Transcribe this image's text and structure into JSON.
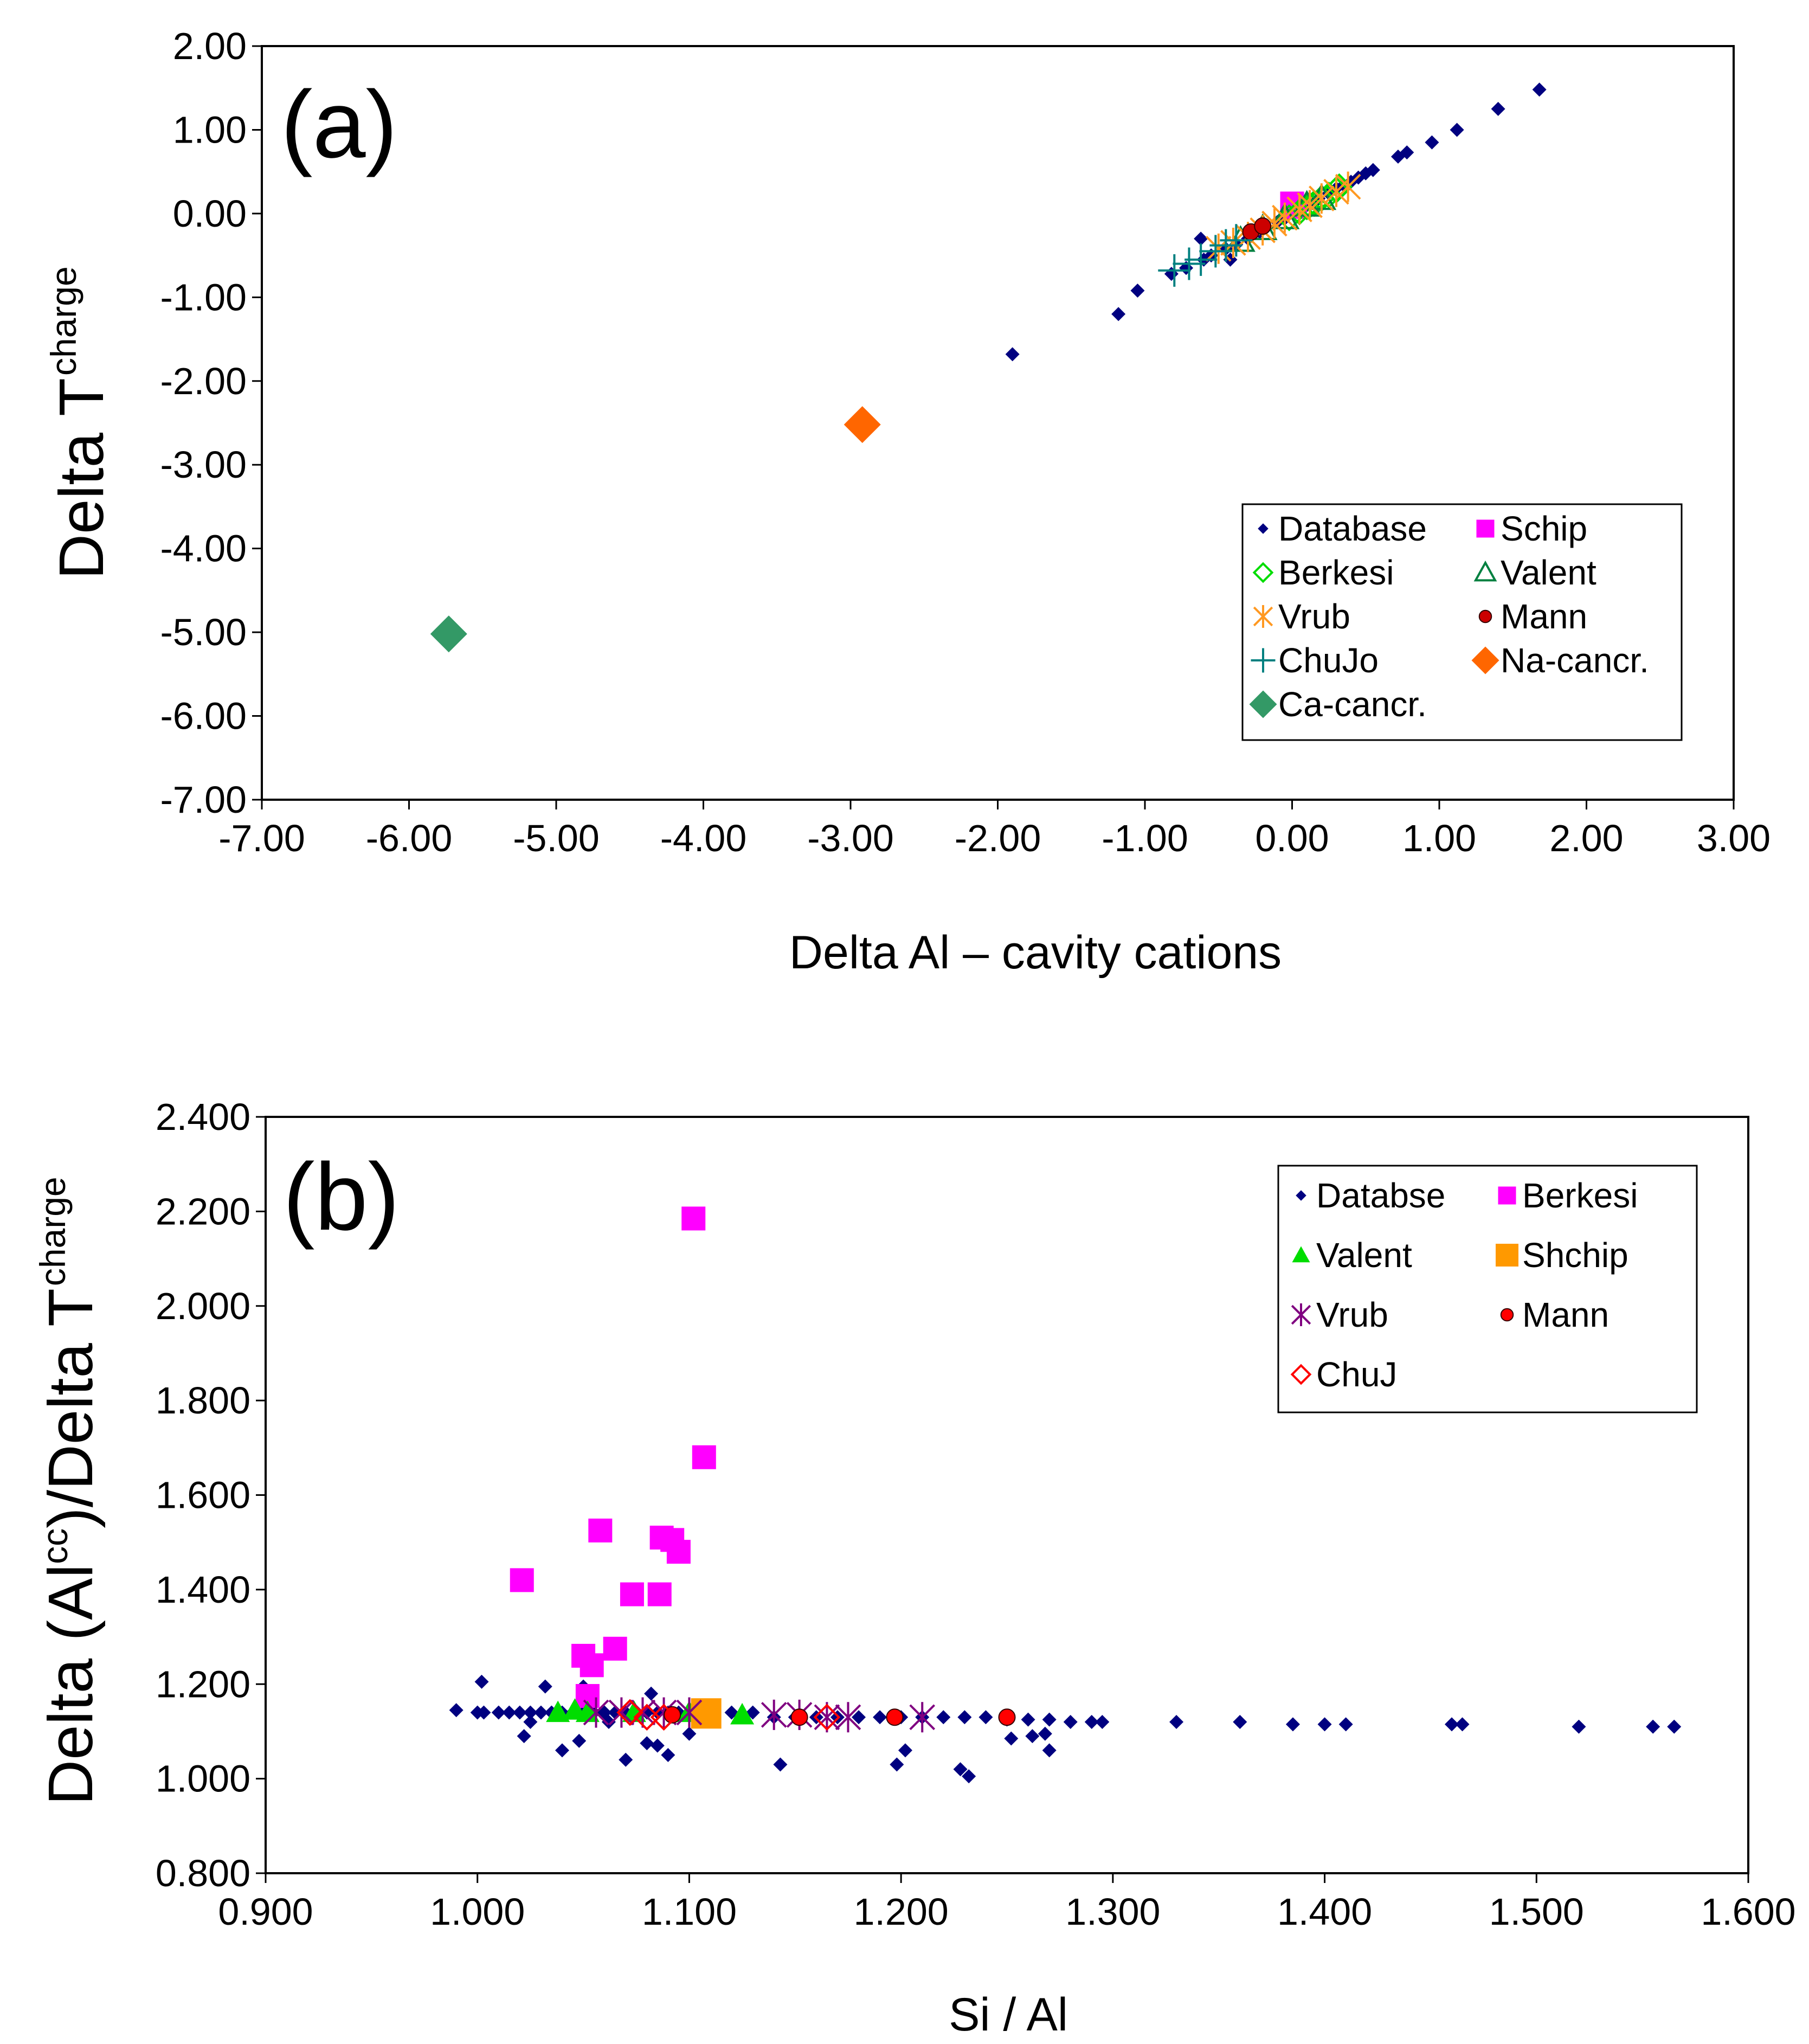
{
  "figure": {
    "background": "#ffffff"
  },
  "chart_data": [
    {
      "type": "scatter",
      "panel_label": "(a)",
      "title": "",
      "xlabel": "Delta Al – cavity cations",
      "ylabel_main": "Delta T",
      "ylabel_sup": "charge",
      "xlim": [
        -7.0,
        3.0
      ],
      "ylim": [
        -7.0,
        2.0
      ],
      "x_ticks": [
        -7,
        -6,
        -5,
        -4,
        -3,
        -2,
        -1,
        0,
        1,
        2,
        3
      ],
      "y_ticks": [
        2,
        1,
        0,
        -1,
        -2,
        -3,
        -4,
        -5,
        -6,
        -7
      ],
      "x_tick_labels": [
        "-7.00",
        "-6.00",
        "-5.00",
        "-4.00",
        "-3.00",
        "-2.00",
        "-1.00",
        "0.00",
        "1.00",
        "2.00",
        "3.00"
      ],
      "y_tick_labels": [
        "2.00",
        "1.00",
        "0.00",
        "-1.00",
        "-2.00",
        "-3.00",
        "-4.00",
        "-5.00",
        "-6.00",
        "-7.00"
      ],
      "grid": false,
      "legend_position": "lower-right",
      "legend_columns": 2,
      "series": [
        {
          "name": "Database",
          "marker": "diamond-small",
          "color": "#000080",
          "x": [
            -1.9,
            -1.18,
            -1.05,
            -0.82,
            -0.72,
            -0.6,
            -0.55,
            -0.45,
            -0.38,
            -0.3,
            -0.22,
            -0.1,
            -0.05,
            0.02,
            0.1,
            0.18,
            0.25,
            0.3,
            0.35,
            0.4,
            0.45,
            0.5,
            0.55,
            0.72,
            0.78,
            0.95,
            1.12,
            1.4,
            1.68,
            -0.62,
            -0.42
          ],
          "y": [
            -1.68,
            -1.2,
            -0.92,
            -0.72,
            -0.65,
            -0.55,
            -0.5,
            -0.42,
            -0.37,
            -0.3,
            -0.22,
            -0.1,
            -0.06,
            0.02,
            0.1,
            0.18,
            0.24,
            0.3,
            0.34,
            0.38,
            0.43,
            0.48,
            0.52,
            0.68,
            0.73,
            0.85,
            1.0,
            1.25,
            1.48,
            -0.3,
            -0.55
          ]
        },
        {
          "name": "Schip",
          "marker": "square",
          "color": "#ff00ff",
          "x": [
            0.0,
            0.02
          ],
          "y": [
            0.12,
            0.08
          ]
        },
        {
          "name": "Berkesi",
          "marker": "diamond-open",
          "color": "#00dd00",
          "x": [
            -0.02,
            0.05,
            0.1,
            0.15,
            0.2,
            0.25,
            0.3,
            0.32,
            0.12
          ],
          "y": [
            -0.05,
            0.02,
            0.08,
            0.12,
            0.18,
            0.22,
            0.28,
            0.32,
            0.1
          ]
        },
        {
          "name": "Valent",
          "marker": "triangle-open",
          "color": "#008040",
          "x": [
            -0.35,
            -0.2,
            -0.05,
            0.1,
            0.2
          ],
          "y": [
            -0.32,
            -0.18,
            -0.05,
            0.1,
            0.18
          ]
        },
        {
          "name": "Vrub",
          "marker": "asterisk",
          "color": "#ff9922",
          "x": [
            -0.5,
            -0.4,
            -0.3,
            -0.2,
            -0.12,
            -0.05,
            0.05,
            0.12,
            0.2,
            0.3,
            0.38
          ],
          "y": [
            -0.42,
            -0.35,
            -0.28,
            -0.2,
            -0.12,
            -0.05,
            0.05,
            0.1,
            0.18,
            0.26,
            0.32
          ]
        },
        {
          "name": "Mann",
          "marker": "circle",
          "color": "#cc0000",
          "x": [
            -0.28,
            -0.2
          ],
          "y": [
            -0.22,
            -0.15
          ]
        },
        {
          "name": "ChuJo",
          "marker": "plus",
          "color": "#008080",
          "x": [
            -0.8,
            -0.7,
            -0.62,
            -0.52,
            -0.45,
            -0.38
          ],
          "y": [
            -0.68,
            -0.6,
            -0.55,
            -0.45,
            -0.38,
            -0.32
          ]
        },
        {
          "name": "Na-cancr.",
          "marker": "diamond-large",
          "color": "#ff6600",
          "x": [
            -2.92
          ],
          "y": [
            -2.52
          ]
        },
        {
          "name": "Ca-cancr.",
          "marker": "diamond-large",
          "color": "#339966",
          "x": [
            -5.73
          ],
          "y": [
            -5.02
          ]
        }
      ]
    },
    {
      "type": "scatter",
      "panel_label": "(b)",
      "title": "",
      "xlabel": "Si / Al",
      "ylabel_parts": [
        "Delta (Al",
        "cc",
        ")/Delta T",
        "charge"
      ],
      "xlim": [
        0.9,
        1.6
      ],
      "ylim": [
        0.8,
        2.4
      ],
      "x_ticks": [
        0.9,
        1.0,
        1.1,
        1.2,
        1.3,
        1.4,
        1.5,
        1.6
      ],
      "y_ticks": [
        2.4,
        2.2,
        2.0,
        1.8,
        1.6,
        1.4,
        1.2,
        1.0,
        0.8
      ],
      "x_tick_labels": [
        "0.900",
        "1.000",
        "1.100",
        "1.200",
        "1.300",
        "1.400",
        "1.500",
        "1.600"
      ],
      "y_tick_labels": [
        "2.400",
        "2.200",
        "2.000",
        "1.800",
        "1.600",
        "1.400",
        "1.200",
        "1.000",
        "0.800"
      ],
      "grid": false,
      "legend_position": "top-right",
      "legend_columns": 2,
      "series": [
        {
          "name": "Databse",
          "marker": "diamond-small",
          "color": "#000080",
          "x": [
            0.99,
            1.0,
            1.003,
            1.01,
            1.015,
            1.02,
            1.025,
            1.03,
            1.035,
            1.04,
            1.045,
            1.05,
            1.055,
            1.06,
            1.065,
            1.07,
            1.075,
            1.08,
            1.085,
            1.09,
            1.095,
            1.1,
            1.11,
            1.12,
            1.13,
            1.14,
            1.15,
            1.16,
            1.17,
            1.18,
            1.19,
            1.2,
            1.21,
            1.22,
            1.23,
            1.24,
            1.25,
            1.26,
            1.27,
            1.28,
            1.29,
            1.295,
            1.33,
            1.36,
            1.385,
            1.4,
            1.41,
            1.46,
            1.465,
            1.52,
            1.555,
            1.565,
            1.002,
            1.022,
            1.04,
            1.048,
            1.05,
            1.07,
            1.08,
            1.082,
            1.09,
            1.1,
            1.143,
            1.198,
            1.202,
            1.228,
            1.232,
            1.262,
            1.27,
            1.025,
            1.032,
            1.085,
            1.062,
            1.252,
            1.268
          ],
          "y": [
            1.145,
            1.14,
            1.14,
            1.14,
            1.14,
            1.14,
            1.14,
            1.14,
            1.14,
            1.14,
            1.14,
            1.14,
            1.14,
            1.14,
            1.14,
            1.14,
            1.14,
            1.14,
            1.14,
            1.14,
            1.14,
            1.14,
            1.14,
            1.14,
            1.14,
            1.13,
            1.13,
            1.13,
            1.13,
            1.13,
            1.13,
            1.13,
            1.13,
            1.13,
            1.13,
            1.13,
            1.125,
            1.125,
            1.125,
            1.12,
            1.12,
            1.12,
            1.12,
            1.12,
            1.115,
            1.115,
            1.115,
            1.115,
            1.115,
            1.11,
            1.11,
            1.11,
            1.205,
            1.09,
            1.06,
            1.08,
            1.195,
            1.04,
            1.075,
            1.18,
            1.05,
            1.095,
            1.03,
            1.03,
            1.06,
            1.02,
            1.005,
            1.09,
            1.06,
            1.12,
            1.195,
            1.07,
            1.12,
            1.085,
            1.095
          ]
        },
        {
          "name": "Berkesi",
          "marker": "square",
          "color": "#ff00ff",
          "x": [
            1.021,
            1.05,
            1.052,
            1.054,
            1.058,
            1.065,
            1.073,
            1.086,
            1.087,
            1.092,
            1.095,
            1.102,
            1.107
          ],
          "y": [
            1.42,
            1.26,
            1.175,
            1.24,
            1.525,
            1.275,
            1.39,
            1.39,
            1.51,
            1.505,
            1.48,
            2.185,
            1.68
          ]
        },
        {
          "name": "Valent",
          "marker": "triangle",
          "color": "#00dd00",
          "x": [
            1.038,
            1.046,
            1.052,
            1.074,
            1.1,
            1.125
          ],
          "y": [
            1.14,
            1.145,
            1.14,
            1.14,
            1.14,
            1.135
          ]
        },
        {
          "name": "Shchip",
          "marker": "square-large",
          "color": "#ff9900",
          "x": [
            1.108
          ],
          "y": [
            1.138
          ]
        },
        {
          "name": "Vrub",
          "marker": "asterisk",
          "color": "#800080",
          "x": [
            1.056,
            1.068,
            1.078,
            1.088,
            1.1,
            1.14,
            1.152,
            1.165,
            1.175,
            1.21
          ],
          "y": [
            1.14,
            1.14,
            1.14,
            1.14,
            1.14,
            1.135,
            1.135,
            1.13,
            1.13,
            1.13
          ]
        },
        {
          "name": "Mann",
          "marker": "circle",
          "color": "#ff0000",
          "x": [
            1.092,
            1.152,
            1.197,
            1.25
          ],
          "y": [
            1.135,
            1.13,
            1.13,
            1.13
          ]
        },
        {
          "name": "ChuJ",
          "marker": "diamond-open",
          "color": "#ff0000",
          "x": [
            1.072,
            1.08,
            1.088,
            1.165
          ],
          "y": [
            1.14,
            1.13,
            1.13,
            1.13
          ]
        }
      ]
    }
  ]
}
